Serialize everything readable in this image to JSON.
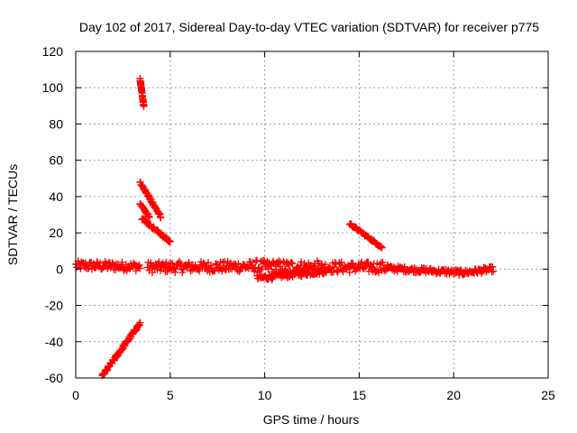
{
  "chart_data": {
    "type": "scatter",
    "title": "Day 102 of 2017, Sidereal Day-to-day VTEC variation (SDTVAR) for receiver p775",
    "xlabel": "GPS time / hours",
    "ylabel": "SDTVAR / TECUs",
    "xlim": [
      0,
      25
    ],
    "ylim": [
      -60,
      120
    ],
    "xticks": [
      0,
      5,
      10,
      15,
      20,
      25
    ],
    "xtick_labels": [
      "0",
      "5",
      "10",
      "15",
      "20",
      "25"
    ],
    "yticks": [
      -60,
      -40,
      -20,
      0,
      20,
      40,
      60,
      80,
      100,
      120
    ],
    "ytick_labels": [
      "-60",
      "-40",
      "-20",
      "0",
      "20",
      "40",
      "60",
      "80",
      "100",
      "120"
    ],
    "grid": true,
    "marker": "+",
    "color": "#ff0000",
    "series": [
      {
        "name": "SDTVAR",
        "segments": [
          {
            "x_start": 0.0,
            "x_end": 3.4,
            "y_start": 2,
            "y_end": 1.5,
            "spread": 2.5
          },
          {
            "x_start": 3.8,
            "x_end": 9.5,
            "y_start": 1,
            "y_end": 1.5,
            "spread": 3
          },
          {
            "x_start": 9.5,
            "x_end": 13.0,
            "y_start": 1.5,
            "y_end": 1,
            "spread": 3.5
          },
          {
            "x_start": 9.6,
            "x_end": 13.2,
            "y_start": -5,
            "y_end": -1,
            "spread": 1.5
          },
          {
            "x_start": 13.0,
            "x_end": 16.5,
            "y_start": 1,
            "y_end": 1,
            "spread": 3
          },
          {
            "x_start": 16.5,
            "x_end": 20.5,
            "y_start": 0.5,
            "y_end": -2,
            "spread": 1.5
          },
          {
            "x_start": 20.5,
            "x_end": 22.1,
            "y_start": -2,
            "y_end": 0,
            "spread": 1.5
          },
          {
            "x_start": 1.4,
            "x_end": 3.4,
            "y_start": -59,
            "y_end": -30,
            "spread": 1
          },
          {
            "x_start": 3.4,
            "x_end": 3.6,
            "y_start": 105,
            "y_end": 90,
            "spread": 0.5
          },
          {
            "x_start": 3.4,
            "x_end": 4.5,
            "y_start": 48,
            "y_end": 29,
            "spread": 0.8
          },
          {
            "x_start": 3.4,
            "x_end": 3.9,
            "y_start": 36,
            "y_end": 29,
            "spread": 0.5
          },
          {
            "x_start": 3.5,
            "x_end": 5.0,
            "y_start": 28,
            "y_end": 15,
            "spread": 0.8
          },
          {
            "x_start": 14.5,
            "x_end": 16.2,
            "y_start": 25,
            "y_end": 12,
            "spread": 0.6
          }
        ]
      }
    ]
  }
}
